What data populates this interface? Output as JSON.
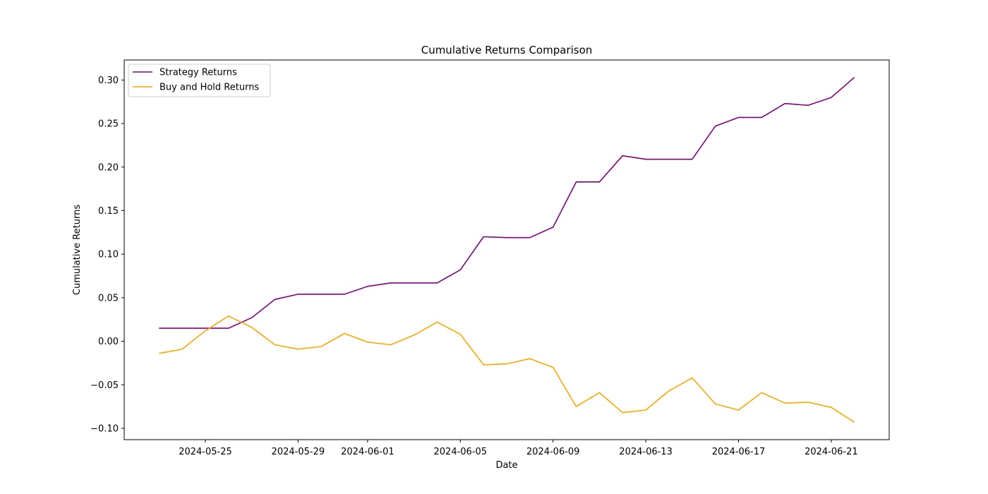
{
  "chart_data": {
    "type": "line",
    "title": "Cumulative Returns Comparison",
    "xlabel": "Date",
    "ylabel": "Cumulative Returns",
    "x": [
      "2024-05-23",
      "2024-05-24",
      "2024-05-25",
      "2024-05-26",
      "2024-05-27",
      "2024-05-28",
      "2024-05-29",
      "2024-05-30",
      "2024-05-31",
      "2024-06-01",
      "2024-06-02",
      "2024-06-03",
      "2024-06-04",
      "2024-06-05",
      "2024-06-06",
      "2024-06-07",
      "2024-06-08",
      "2024-06-09",
      "2024-06-10",
      "2024-06-11",
      "2024-06-12",
      "2024-06-13",
      "2024-06-14",
      "2024-06-15",
      "2024-06-16",
      "2024-06-17",
      "2024-06-18",
      "2024-06-19",
      "2024-06-20",
      "2024-06-21",
      "2024-06-22"
    ],
    "xlim": [
      "2024-05-21T12:00",
      "2024-06-23T12:00"
    ],
    "x_ticks": [
      "2024-05-25",
      "2024-05-29",
      "2024-06-01",
      "2024-06-05",
      "2024-06-09",
      "2024-06-13",
      "2024-06-17",
      "2024-06-21"
    ],
    "ylim": [
      -0.113,
      0.323
    ],
    "y_ticks": [
      "−0.10",
      "−0.05",
      "0.00",
      "0.05",
      "0.10",
      "0.15",
      "0.20",
      "0.25",
      "0.30"
    ],
    "y_tick_values": [
      -0.1,
      -0.05,
      0.0,
      0.05,
      0.1,
      0.15,
      0.2,
      0.25,
      0.3
    ],
    "legend_position": "top-left",
    "grid": false,
    "series": [
      {
        "name": "Strategy Returns",
        "color": "#800080",
        "values": [
          0.015,
          0.015,
          0.015,
          0.015,
          0.027,
          0.048,
          0.054,
          0.054,
          0.054,
          0.063,
          0.067,
          0.067,
          0.067,
          0.082,
          0.12,
          0.119,
          0.119,
          0.131,
          0.183,
          0.183,
          0.213,
          0.209,
          0.209,
          0.209,
          0.247,
          0.257,
          0.257,
          0.273,
          0.271,
          0.28,
          0.303
        ]
      },
      {
        "name": "Buy and Hold Returns",
        "color": "#FFA500",
        "values": [
          -0.014,
          -0.009,
          0.012,
          0.029,
          0.016,
          -0.004,
          -0.009,
          -0.006,
          0.009,
          -0.001,
          -0.004,
          0.007,
          0.022,
          0.008,
          -0.027,
          -0.026,
          -0.02,
          -0.03,
          -0.075,
          -0.059,
          -0.082,
          -0.079,
          -0.057,
          -0.042,
          -0.072,
          -0.079,
          -0.059,
          -0.071,
          -0.07,
          -0.076,
          -0.093
        ]
      }
    ]
  }
}
